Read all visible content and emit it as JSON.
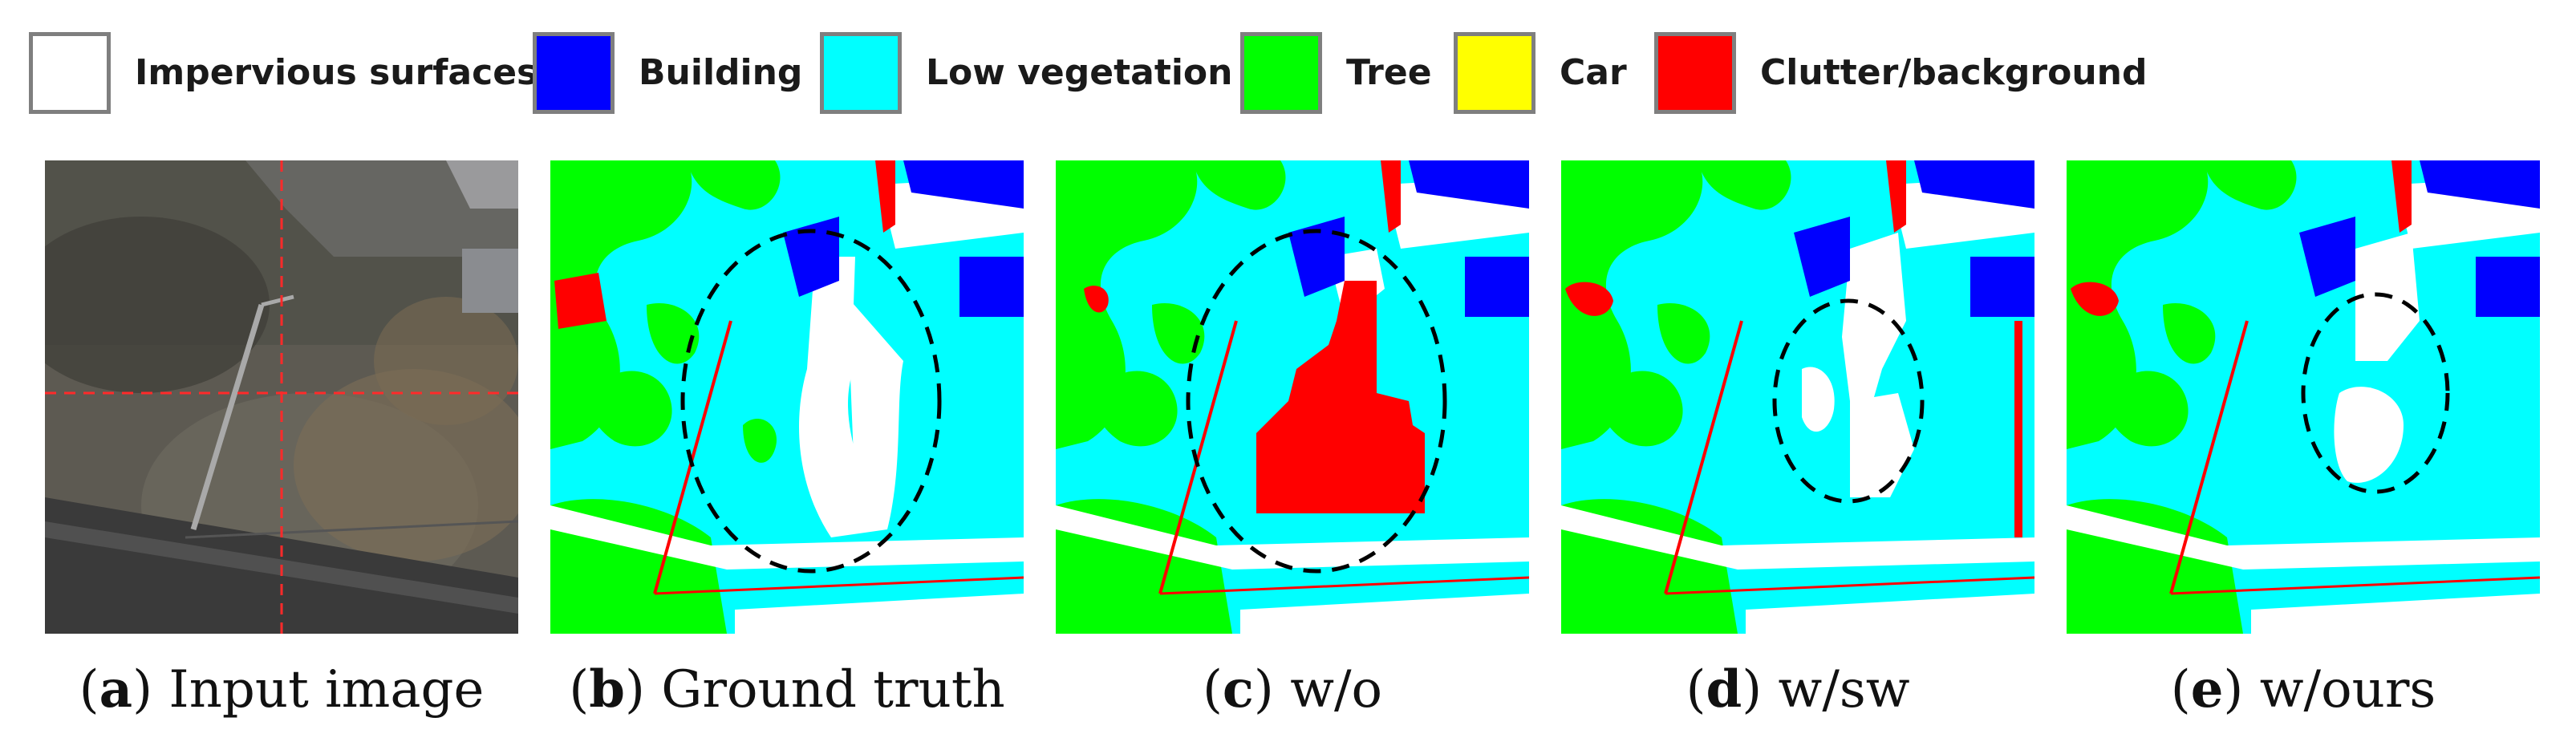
{
  "legend": [
    {
      "label": "Impervious surfaces",
      "color": "#ffffff"
    },
    {
      "label": "Building",
      "color": "#0000ff"
    },
    {
      "label": "Low vegetation",
      "color": "#00ffff"
    },
    {
      "label": "Tree",
      "color": "#00ff00"
    },
    {
      "label": "Car",
      "color": "#ffff00"
    },
    {
      "label": "Clutter/background",
      "color": "#ff0000"
    }
  ],
  "panels": [
    {
      "tag": "a",
      "title": "Input image"
    },
    {
      "tag": "b",
      "title": "Ground truth"
    },
    {
      "tag": "c",
      "title": "w/o"
    },
    {
      "tag": "d",
      "title": "w/sw"
    },
    {
      "tag": "e",
      "title": "w/ours"
    }
  ]
}
